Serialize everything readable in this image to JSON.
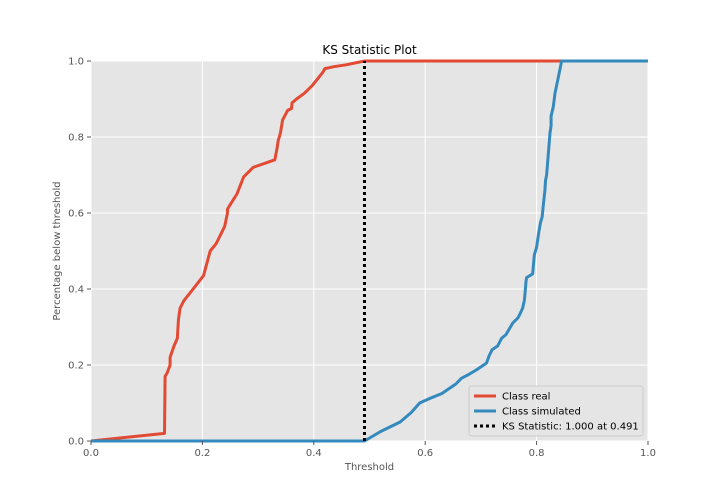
{
  "chart_data": {
    "type": "line",
    "title": "KS Statistic Plot",
    "xlabel": "Threshold",
    "ylabel": "Percentage below threshold",
    "xlim": [
      0.0,
      1.0
    ],
    "ylim": [
      0.0,
      1.0
    ],
    "xticks": [
      0.0,
      0.2,
      0.4,
      0.6,
      0.8,
      1.0
    ],
    "xtick_labels": [
      "0.0",
      "0.2",
      "0.4",
      "0.6",
      "0.8",
      "1.0"
    ],
    "yticks": [
      0.0,
      0.2,
      0.4,
      0.6,
      0.8,
      1.0
    ],
    "ytick_labels": [
      "0.0",
      "0.2",
      "0.4",
      "0.6",
      "0.8",
      "1.0"
    ],
    "grid": true,
    "legend_position": "bottom-right",
    "background": "#e5e5e5",
    "series": [
      {
        "name": "Class real",
        "color": "#e24a33",
        "x": [
          0.0,
          0.132,
          0.133,
          0.137,
          0.142,
          0.142,
          0.149,
          0.155,
          0.157,
          0.16,
          0.167,
          0.178,
          0.202,
          0.214,
          0.225,
          0.24,
          0.245,
          0.245,
          0.249,
          0.262,
          0.274,
          0.291,
          0.33,
          0.334,
          0.336,
          0.34,
          0.344,
          0.353,
          0.36,
          0.361,
          0.369,
          0.383,
          0.397,
          0.416,
          0.42,
          0.436,
          0.458,
          0.491,
          1.0
        ],
        "y": [
          0.0,
          0.02,
          0.17,
          0.18,
          0.2,
          0.22,
          0.25,
          0.27,
          0.32,
          0.35,
          0.37,
          0.39,
          0.435,
          0.5,
          0.52,
          0.565,
          0.6,
          0.61,
          0.62,
          0.65,
          0.695,
          0.72,
          0.74,
          0.77,
          0.79,
          0.81,
          0.845,
          0.87,
          0.875,
          0.89,
          0.9,
          0.915,
          0.935,
          0.97,
          0.98,
          0.985,
          0.99,
          1.0,
          1.0
        ]
      },
      {
        "name": "Class simulated",
        "color": "#348abd",
        "x": [
          0.0,
          0.491,
          0.52,
          0.555,
          0.575,
          0.59,
          0.605,
          0.63,
          0.655,
          0.665,
          0.678,
          0.695,
          0.71,
          0.715,
          0.72,
          0.73,
          0.737,
          0.745,
          0.757,
          0.767,
          0.772,
          0.775,
          0.778,
          0.779,
          0.781,
          0.782,
          0.793,
          0.795,
          0.796,
          0.8,
          0.804,
          0.807,
          0.81,
          0.812,
          0.815,
          0.816,
          0.818,
          0.824,
          0.826,
          0.826,
          0.83,
          0.833,
          0.838,
          0.845,
          1.0
        ],
        "y": [
          0.0,
          0.0,
          0.025,
          0.05,
          0.075,
          0.1,
          0.11,
          0.125,
          0.15,
          0.165,
          0.175,
          0.19,
          0.205,
          0.225,
          0.24,
          0.25,
          0.27,
          0.28,
          0.31,
          0.325,
          0.34,
          0.35,
          0.37,
          0.385,
          0.42,
          0.43,
          0.44,
          0.475,
          0.49,
          0.51,
          0.55,
          0.575,
          0.59,
          0.62,
          0.66,
          0.685,
          0.7,
          0.81,
          0.83,
          0.855,
          0.88,
          0.915,
          0.95,
          1.0,
          1.0
        ]
      }
    ],
    "ks_line": {
      "name": "KS Statistic: 1.000 at 0.491",
      "x": 0.491,
      "y_range": [
        0.0,
        1.0
      ],
      "style": "dotted",
      "color": "#000000"
    }
  }
}
